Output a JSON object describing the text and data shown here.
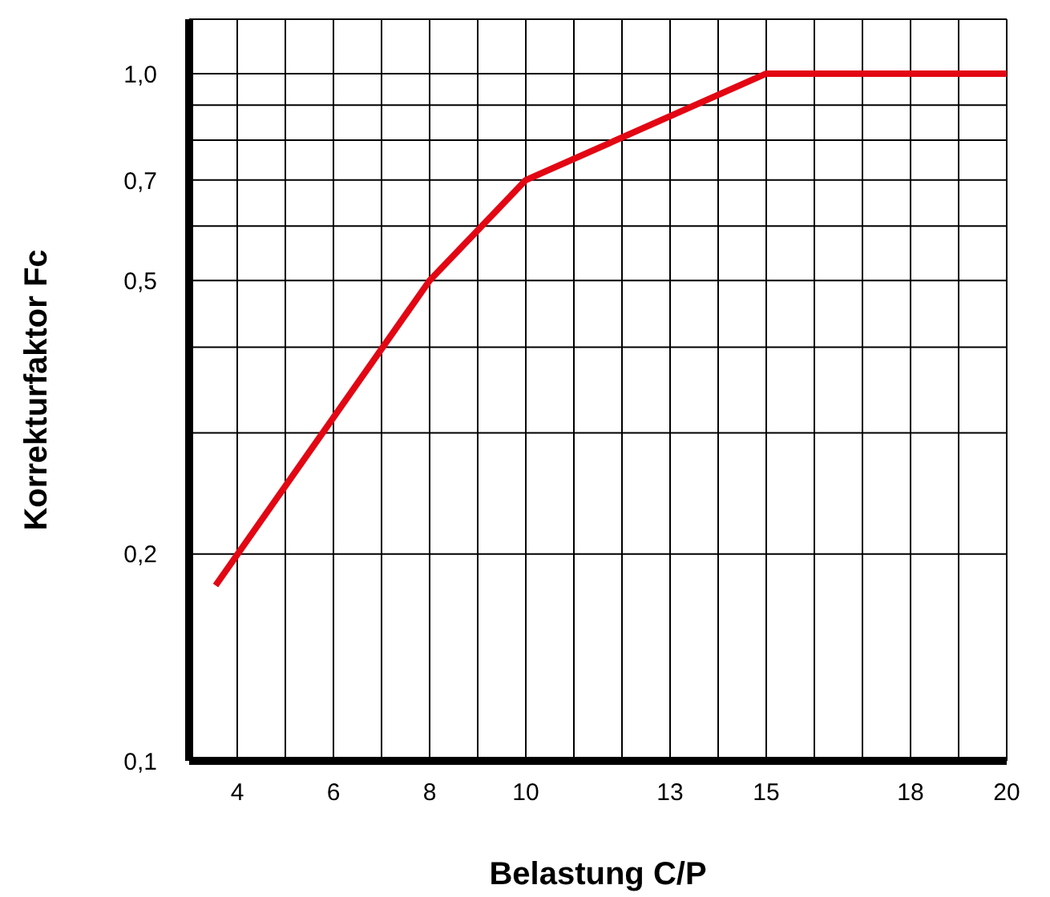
{
  "chart_data": {
    "type": "line",
    "xlabel": "Belastung C/P",
    "ylabel": "Korrekturfaktor Fc",
    "x": [
      3.55,
      8,
      10,
      15,
      20
    ],
    "series": [
      {
        "color": "#e30613",
        "values": [
          0.18,
          0.5,
          0.7,
          1.0,
          1.0
        ]
      }
    ],
    "xlim": [
      3,
      20
    ],
    "xticks": [
      4,
      {
        "value": 5,
        "label": null
      },
      6,
      {
        "value": 7,
        "label": null
      },
      8,
      {
        "value": 9,
        "label": null
      },
      10,
      {
        "value": 11,
        "label": null
      },
      {
        "value": 12,
        "label": null
      },
      13,
      {
        "value": 14,
        "label": null
      },
      15,
      {
        "value": 16,
        "label": null
      },
      {
        "value": 17,
        "label": null
      },
      18,
      {
        "value": 19,
        "label": null
      },
      20
    ],
    "ylim": [
      0.1,
      1.2
    ],
    "yticks": [
      {
        "value": 0.1,
        "label": "0,1"
      },
      {
        "value": 0.2,
        "label": "0,2"
      },
      {
        "value": 0.3,
        "label": null
      },
      {
        "value": 0.4,
        "label": null
      },
      {
        "value": 0.5,
        "label": "0,5"
      },
      {
        "value": 0.6,
        "label": null
      },
      {
        "value": 0.7,
        "label": "0,7"
      },
      {
        "value": 0.8,
        "label": null
      },
      {
        "value": 0.9,
        "label": null
      },
      {
        "value": 1.0,
        "label": "1,0"
      }
    ],
    "log": "y",
    "grid": true,
    "marker": "none",
    "line_style": "solid",
    "legend": false
  }
}
